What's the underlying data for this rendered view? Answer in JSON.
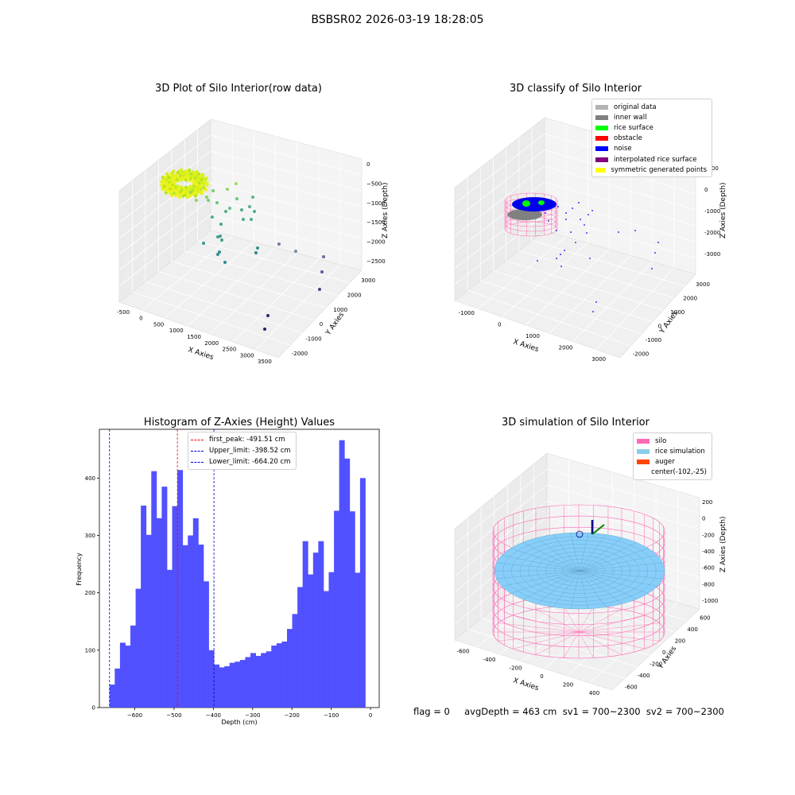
{
  "suptitle": "BSBSR02 2026-03-19 18:28:05",
  "status_line": "flag = 0     avgDepth = 463 cm  sv1 = 700~2300  sv2 = 700~2300",
  "colors": {
    "histogram_bar": "#4b4bff",
    "first_peak_line": "#ff0000",
    "limit_line": "#0000cc",
    "silo_wire": "#ff69b4",
    "rice_surface_sim": "#87cefa"
  },
  "panels": {
    "raw": {
      "title": "3D Plot of Silo Interior(row data)",
      "xlabel": "X Axies",
      "ylabel": "Y Axies",
      "zlabel": "Z Axies (Depth)",
      "xticks": [
        "-500",
        "0",
        "500",
        "1000",
        "1500",
        "2000",
        "2500",
        "3000",
        "3500"
      ],
      "yticks": [
        "-2000",
        "-1000",
        "0",
        "1000",
        "2000",
        "3000"
      ],
      "zticks": [
        "0",
        "−500",
        "−1000",
        "−1500",
        "−2000",
        "−2500"
      ]
    },
    "classify": {
      "title": "3D classify of Silo Interior",
      "xlabel": "X Axies",
      "ylabel": "Y Axies",
      "zlabel": "Z Axies (Depth)",
      "xticks": [
        "-1000",
        "0",
        "1000",
        "2000",
        "3000"
      ],
      "yticks": [
        "-2000",
        "-1000",
        "0",
        "1000",
        "2000",
        "3000"
      ],
      "zticks": [
        "1000",
        "0",
        "-1000",
        "-2000",
        "-3000"
      ],
      "legend": [
        {
          "label": "original data",
          "color": "#b3b3b3"
        },
        {
          "label": "inner wall",
          "color": "#808080"
        },
        {
          "label": "rice surface",
          "color": "#00ff00"
        },
        {
          "label": "obstacle",
          "color": "#ff0000"
        },
        {
          "label": "noise",
          "color": "#0000ff"
        },
        {
          "label": "interpolated rice surface",
          "color": "#800080"
        },
        {
          "label": "symmetric generated points",
          "color": "#ffff00"
        }
      ]
    },
    "simulation": {
      "title": "3D simulation of Silo Interior",
      "xlabel": "X Axies",
      "ylabel": "Y Axies",
      "zlabel": "Z Axies (Depth)",
      "xticks": [
        "-600",
        "-400",
        "-200",
        "0",
        "200",
        "400"
      ],
      "yticks": [
        "-600",
        "-400",
        "-200",
        "0",
        "200",
        "400",
        "600"
      ],
      "zticks": [
        "200",
        "0",
        "-200",
        "-400",
        "-600",
        "-800",
        "-1000"
      ],
      "legend": [
        {
          "label": "silo",
          "color": "#ff69b4"
        },
        {
          "label": "rice simulation",
          "color": "#87ceeb"
        },
        {
          "label": "auger",
          "color": "#ff4500"
        },
        {
          "label": "center(-102,-25)",
          "color": ""
        }
      ]
    }
  },
  "chart_data": [
    {
      "type": "histogram",
      "title": "Histogram of Z-Axies (Height) Values",
      "xlabel": "Depth (cm)",
      "ylabel": "Frequency",
      "xlim": [
        -690,
        22
      ],
      "ylim": [
        0,
        485
      ],
      "xticks": [
        -600,
        -500,
        -400,
        -300,
        -200,
        -100,
        0
      ],
      "yticks": [
        0,
        100,
        200,
        300,
        400
      ],
      "bin_width": 13.28,
      "bin_start": -664.2,
      "values": [
        40,
        68,
        113,
        108,
        143,
        207,
        352,
        301,
        412,
        330,
        385,
        240,
        351,
        414,
        283,
        300,
        330,
        284,
        220,
        100,
        75,
        70,
        72,
        78,
        80,
        83,
        88,
        95,
        90,
        95,
        98,
        108,
        112,
        115,
        137,
        163,
        210,
        290,
        232,
        270,
        290,
        203,
        236,
        343,
        466,
        434,
        342,
        235,
        400
      ],
      "lines": [
        {
          "label": "first_peak: -491.51 cm",
          "x": -491.51,
          "color": "#ff0000"
        },
        {
          "label": "Upper_limit: -398.52 cm",
          "x": -398.52,
          "color": "#0000cc"
        },
        {
          "label": "Lower_limit: -664.20 cm",
          "x": -664.2,
          "color": "#0000cc"
        }
      ]
    }
  ]
}
